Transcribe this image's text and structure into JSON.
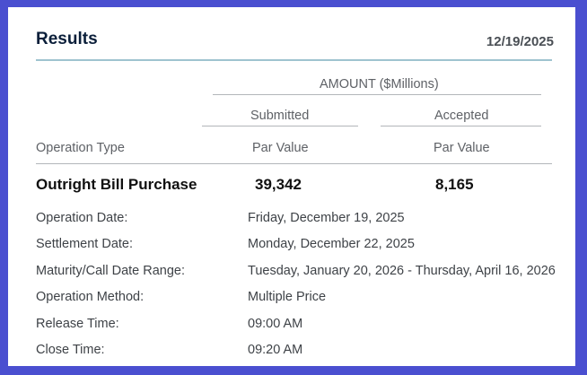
{
  "header": {
    "title": "Results",
    "date": "12/19/2025"
  },
  "table": {
    "amount_heading": "AMOUNT ($Millions)",
    "submitted_heading": "Submitted",
    "accepted_heading": "Accepted",
    "operation_type_label": "Operation Type",
    "submitted_sub": "Par Value",
    "accepted_sub": "Par Value",
    "row": {
      "operation": "Outright Bill Purchase",
      "submitted": "39,342",
      "accepted": "8,165"
    }
  },
  "details": [
    {
      "label": "Operation Date:",
      "value": "Friday, December 19, 2025"
    },
    {
      "label": "Settlement Date:",
      "value": "Monday, December 22, 2025"
    },
    {
      "label": "Maturity/Call Date Range:",
      "value": "Tuesday, January 20, 2026 - Thursday, April 16, 2026"
    },
    {
      "label": "Operation Method:",
      "value": "Multiple Price"
    },
    {
      "label": "Release Time:",
      "value": "09:00 AM"
    },
    {
      "label": "Close Time:",
      "value": "09:20 AM"
    }
  ],
  "colors": {
    "frame": "#4a4fd0",
    "accent_rule": "#9fc3cf",
    "title": "#0b1f3a"
  }
}
